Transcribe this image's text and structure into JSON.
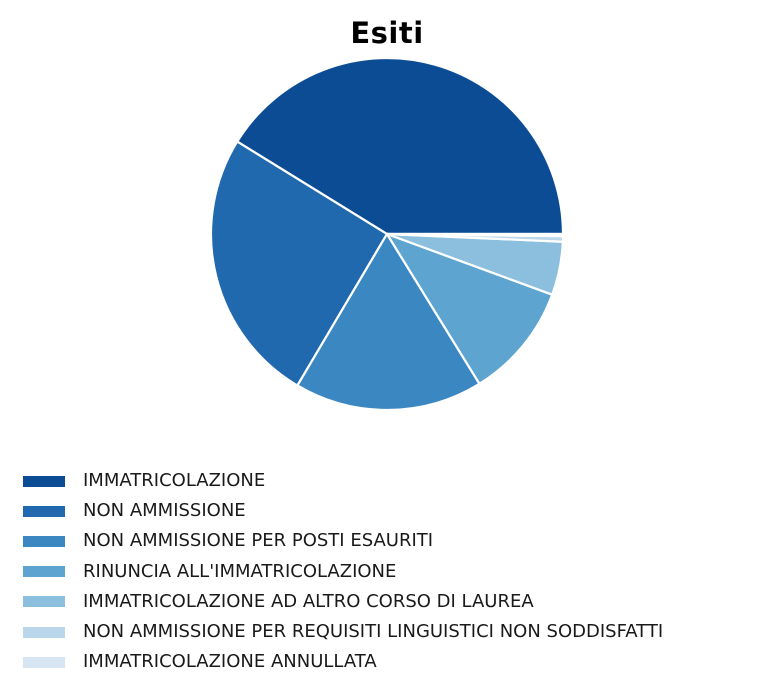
{
  "title": "Esiti",
  "chart_data": {
    "type": "pie",
    "title": "Esiti",
    "labels": [
      "IMMATRICOLAZIONE",
      "NON AMMISSIONE",
      "NON AMMISSIONE PER POSTI ESAURITI",
      "RINUNCIA ALL'IMMATRICOLAZIONE",
      "IMMATRICOLAZIONE AD ALTRO CORSO DI LAUREA",
      "NON AMMISSIONE PER REQUISITI LINGUISTICI NON SODDISFATTI",
      "IMMATRICOLAZIONE ANNULLATA"
    ],
    "values": [
      41.2,
      25.3,
      17.3,
      10.6,
      4.9,
      0.5,
      0.2
    ],
    "colors": [
      "#0c4c95",
      "#2069ae",
      "#3b87c2",
      "#5ea4d0",
      "#8cbfde",
      "#bad6ea",
      "#d7e4f2"
    ],
    "slice_border_color": "#ffffff",
    "start_angle": 0,
    "direction": "counterclockwise",
    "legend_position": "bottom-left",
    "data_labels_shown": false
  }
}
